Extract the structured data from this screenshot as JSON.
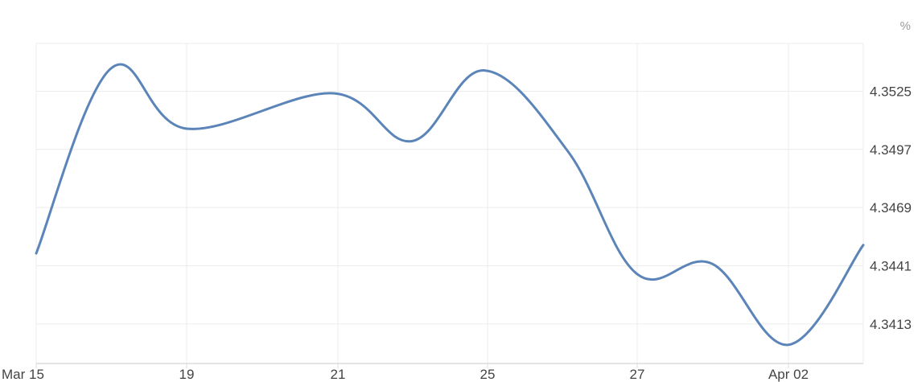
{
  "chart_data": {
    "type": "line",
    "unit": "%",
    "x_tick_labels": [
      "Mar 15",
      "19",
      "21",
      "25",
      "27",
      "Apr 02"
    ],
    "y_tick_labels": [
      "4.3525",
      "4.3497",
      "4.3469",
      "4.3441",
      "4.3413"
    ],
    "ylim": [
      4.3394,
      4.3548
    ],
    "grid": true,
    "series": [
      {
        "values": [
          4.3447,
          4.3536,
          4.3507,
          4.3524,
          4.3501,
          4.3535,
          4.3496,
          4.3437,
          4.3442,
          4.3403,
          4.3451
        ]
      }
    ],
    "colors": {
      "line": "#5b84b8",
      "grid": "#ececec",
      "axis": "#dcdcdc"
    }
  }
}
